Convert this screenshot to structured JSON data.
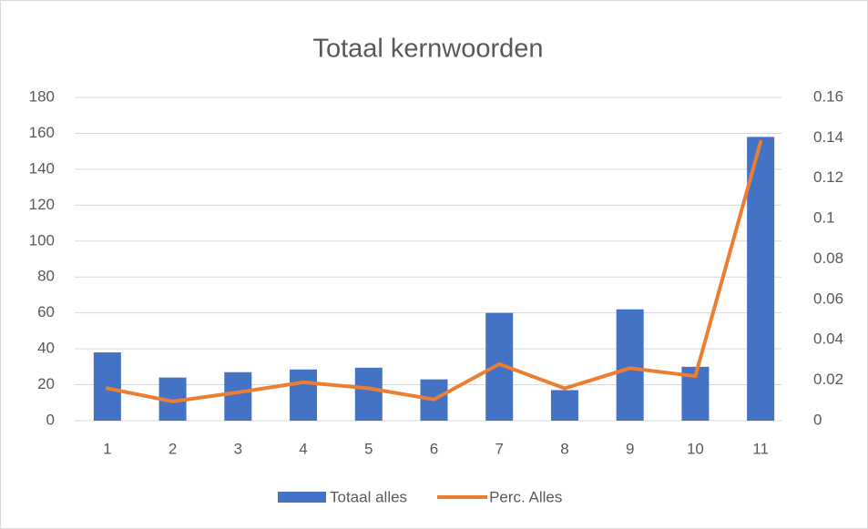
{
  "chart_data": {
    "type": "bar",
    "title": "Totaal kernwoorden",
    "categories": [
      "1",
      "2",
      "3",
      "4",
      "5",
      "6",
      "7",
      "8",
      "9",
      "10",
      "11"
    ],
    "series": [
      {
        "name": "Totaal alles",
        "type": "bar",
        "color": "#4472c4",
        "values": [
          38,
          24,
          27,
          28.5,
          29.5,
          23,
          60,
          17,
          62,
          30,
          158
        ]
      },
      {
        "name": "Perc. Alles",
        "type": "line",
        "axis": "y2",
        "color": "#ed7d31",
        "values": [
          0.016,
          0.0095,
          0.014,
          0.019,
          0.016,
          0.0105,
          0.028,
          0.016,
          0.026,
          0.022,
          0.138
        ]
      }
    ],
    "ylim": [
      0,
      180
    ],
    "yticks": [
      0,
      20,
      40,
      60,
      80,
      100,
      120,
      140,
      160,
      180
    ],
    "y2lim": [
      0,
      0.16
    ],
    "y2ticks": [
      0,
      0.02,
      0.04,
      0.06,
      0.08,
      0.1,
      0.12,
      0.14,
      0.16
    ],
    "grid": true,
    "legend": "bottom"
  }
}
